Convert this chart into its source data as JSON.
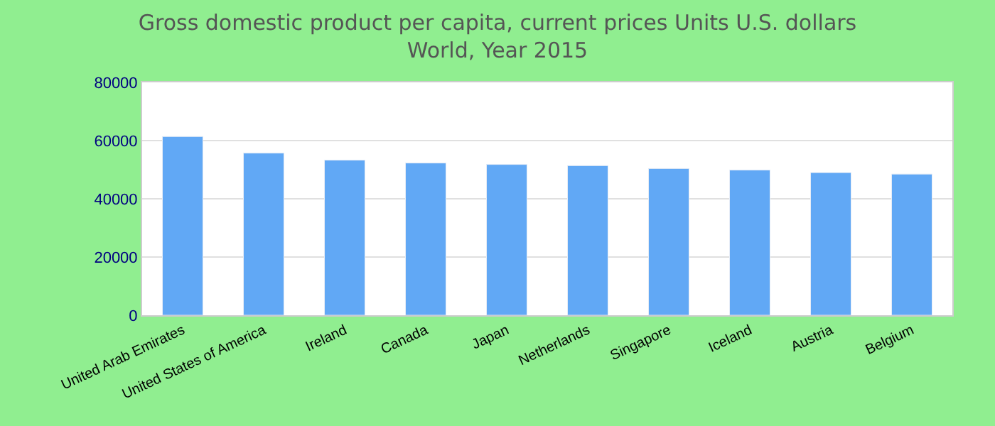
{
  "chart_data": {
    "type": "bar",
    "title": "Gross domestic product per capita, current prices Units U.S. dollars\nWorld, Year 2015",
    "categories": [
      "United Arab Emirates",
      "United States of America",
      "Ireland",
      "Canada",
      "Japan",
      "Netherlands",
      "Singapore",
      "Iceland",
      "Austria",
      "Belgium"
    ],
    "values": [
      61400,
      55700,
      53300,
      52300,
      51800,
      51400,
      50400,
      49900,
      49000,
      48500
    ],
    "color": "#61a8f5",
    "ylim": [
      0,
      80000
    ],
    "yticks": [
      0,
      20000,
      40000,
      60000,
      80000
    ],
    "grid": "y",
    "legend": false
  }
}
